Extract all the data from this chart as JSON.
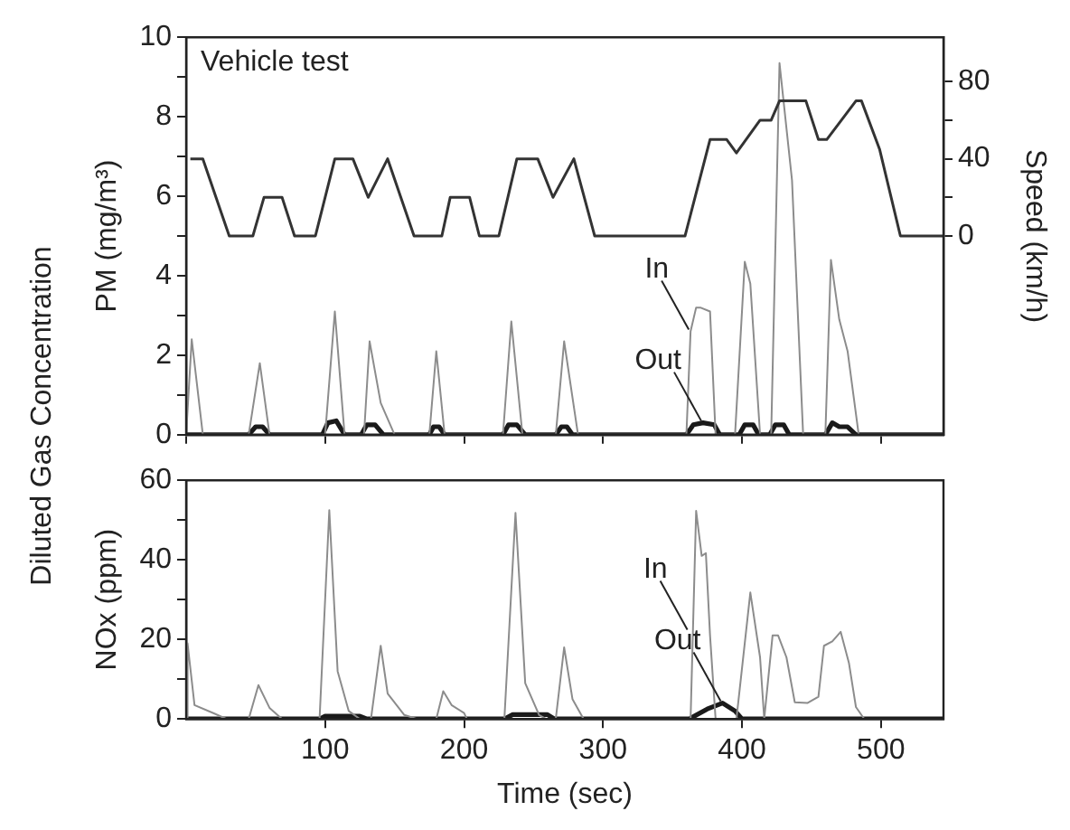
{
  "chart_data": [
    {
      "type": "line",
      "ylabel": "PM (mg/m³)",
      "y2label": "Speed (km/h)",
      "annotations": [
        "Vehicle test",
        "Diluted Gas Concentration",
        {
          "text": "In",
          "x": 363,
          "y": 2.6
        },
        {
          "text": "Out",
          "x": 372,
          "y": 0.3
        }
      ],
      "series": [
        {
          "color": "#333333",
          "axis": "y2",
          "x": [
            3,
            12,
            31,
            48,
            56,
            69,
            78,
            93,
            107,
            120,
            131,
            145,
            164,
            184,
            190,
            204,
            211,
            225,
            238,
            253,
            264,
            279,
            294,
            359,
            377,
            389,
            396,
            413,
            421,
            427,
            446,
            455,
            461,
            482,
            486,
            499,
            514,
            545
          ],
          "values": [
            40,
            40,
            0,
            0,
            20,
            20,
            0,
            0,
            40,
            40,
            20,
            40,
            0,
            0,
            20,
            20,
            0,
            0,
            40,
            40,
            20,
            40,
            0,
            0,
            50,
            50,
            43,
            60,
            60,
            70,
            70,
            50,
            50,
            70,
            70,
            45,
            0,
            0
          ]
        },
        {
          "color": "#8c8c8c",
          "x": [
            0,
            4,
            12,
            45,
            53,
            60,
            100,
            107,
            114,
            128,
            132,
            140,
            150,
            175,
            180,
            186,
            228,
            234,
            242,
            266,
            272,
            282,
            360,
            363,
            367,
            370,
            377,
            381,
            395,
            402,
            406,
            413,
            421,
            427,
            436,
            444,
            460,
            464,
            470,
            476,
            484,
            545
          ],
          "values": [
            0,
            2.4,
            0,
            0,
            1.8,
            0,
            0,
            3.1,
            0,
            0,
            2.35,
            0.8,
            0,
            0,
            2.1,
            0,
            0,
            2.85,
            0,
            0,
            2.35,
            0,
            0,
            2.6,
            3.2,
            3.2,
            3.1,
            0,
            0,
            4.35,
            3.8,
            0,
            0,
            9.35,
            6.4,
            0,
            0,
            4.4,
            2.9,
            2.1,
            0,
            0
          ]
        },
        {
          "color": "#1a1a1a",
          "x": [
            0,
            45,
            50,
            55,
            60,
            98,
            102,
            108,
            114,
            126,
            130,
            136,
            142,
            175,
            178,
            182,
            186,
            228,
            232,
            238,
            244,
            266,
            270,
            274,
            278,
            360,
            365,
            372,
            380,
            384,
            398,
            402,
            408,
            412,
            420,
            424,
            430,
            434,
            460,
            465,
            470,
            476,
            482,
            545
          ],
          "values": [
            0,
            0,
            0.2,
            0.2,
            0,
            0,
            0.3,
            0.35,
            0,
            0,
            0.25,
            0.25,
            0,
            0,
            0.2,
            0.2,
            0,
            0,
            0.25,
            0.25,
            0,
            0,
            0.2,
            0.2,
            0,
            0,
            0.25,
            0.3,
            0.25,
            0,
            0,
            0.25,
            0.25,
            0,
            0,
            0.25,
            0.25,
            0,
            0,
            0.3,
            0.2,
            0.2,
            0,
            0
          ]
        }
      ],
      "xlim": [
        0,
        545
      ],
      "xticks": [
        0,
        100,
        200,
        300,
        400,
        500
      ],
      "ylim": [
        0,
        10
      ],
      "yticks": [
        0,
        {
          "value": 1,
          "label": null
        },
        2,
        {
          "value": 3,
          "label": null
        },
        4,
        {
          "value": 5,
          "label": null
        },
        6,
        {
          "value": 7,
          "label": null
        },
        8,
        {
          "value": 9,
          "label": null
        },
        10
      ],
      "y2lim": [
        -103,
        103
      ],
      "y2ticks": [
        0,
        {
          "value": 20,
          "label": null
        },
        40,
        {
          "value": 60,
          "label": null
        },
        80
      ],
      "tick_labels": "y",
      "grid": false,
      "legend": false
    },
    {
      "type": "line",
      "xlabel": "Time (sec)",
      "ylabel": "NOx (ppm)",
      "annotations": [
        {
          "text": "In",
          "x": 362,
          "y": 22
        },
        {
          "text": "Out",
          "x": 386,
          "y": 4
        }
      ],
      "series": [
        {
          "color": "#8c8c8c",
          "x": [
            0,
            1,
            6,
            20,
            29,
            45,
            52,
            60,
            69,
            96,
            103,
            109,
            117,
            125,
            133,
            140,
            145,
            157,
            166,
            180,
            185,
            191,
            200,
            202,
            229,
            237,
            244,
            254,
            259,
            266,
            272,
            278,
            286,
            360,
            363,
            367,
            371,
            374,
            377,
            381,
            396,
            406,
            413,
            416,
            422,
            426,
            432,
            438,
            447,
            455,
            459,
            465,
            471,
            477,
            482,
            488,
            545
          ],
          "values": [
            0,
            19,
            3.5,
            1.4,
            0,
            0,
            8.5,
            2.8,
            0,
            0,
            52.5,
            12,
            2,
            0,
            0,
            18.4,
            6.4,
            1,
            0,
            0,
            7,
            3.5,
            1.5,
            0,
            0,
            51.8,
            9,
            1,
            0,
            0,
            18,
            5,
            0,
            0,
            0,
            52.3,
            41,
            41.7,
            21,
            0,
            0,
            31.8,
            15.5,
            0,
            21,
            21,
            15.5,
            4.2,
            4,
            5.6,
            18.4,
            19.5,
            21.9,
            14,
            3,
            0,
            0
          ]
        },
        {
          "color": "#1a1a1a",
          "x": [
            0,
            96,
            100,
            125,
            130,
            229,
            235,
            260,
            265,
            362,
            375,
            386,
            395,
            400,
            545
          ],
          "values": [
            0,
            0,
            0.7,
            0.7,
            0,
            0,
            1.1,
            1.1,
            0,
            0,
            2.5,
            4,
            2,
            0,
            0
          ]
        }
      ],
      "xlim": [
        0,
        545
      ],
      "xticks": [
        100,
        200,
        300,
        400,
        500
      ],
      "ylim": [
        0,
        60
      ],
      "yticks": [
        0,
        {
          "value": 10,
          "label": null
        },
        20,
        {
          "value": 30,
          "label": null
        },
        40,
        {
          "value": 50,
          "label": null
        },
        60
      ],
      "grid": false,
      "legend": false
    }
  ]
}
